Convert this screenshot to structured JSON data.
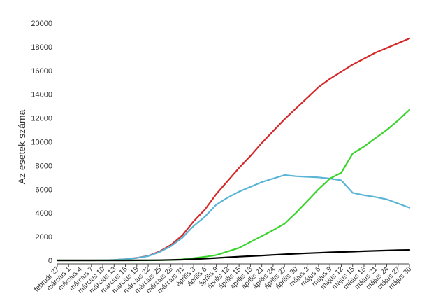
{
  "chart_data": {
    "type": "line",
    "title": "",
    "xlabel": "",
    "ylabel": "Az esetek száma",
    "ylim": [
      0,
      20000
    ],
    "yticks": [
      0,
      2000,
      4000,
      6000,
      8000,
      10000,
      12000,
      14000,
      16000,
      18000,
      20000
    ],
    "grid": false,
    "legend": "none",
    "x": [
      "február 27",
      "március 1",
      "március 4",
      "március 7",
      "március 10",
      "március 13",
      "március 16",
      "március 19",
      "március 22",
      "március 25",
      "március 28",
      "március 31",
      "április 3",
      "április 6",
      "április 9",
      "április 12",
      "április 15",
      "április 18",
      "április 21",
      "április 24",
      "április 27",
      "április 30",
      "május 3",
      "május 6",
      "május 9",
      "május 12",
      "május 15",
      "május 18",
      "május 21",
      "május 24",
      "május 27",
      "május 30"
    ],
    "series": [
      {
        "color": "#d62728",
        "values": [
          0,
          0,
          0,
          0,
          10,
          40,
          100,
          210,
          380,
          750,
          1300,
          2100,
          3300,
          4300,
          5600,
          6700,
          7800,
          8800,
          9900,
          10900,
          11900,
          12800,
          13700,
          14600,
          15300,
          15900,
          16500,
          17000,
          17500,
          17900,
          18300,
          18700
        ]
      },
      {
        "color": "#5ab4d6",
        "values": [
          0,
          0,
          0,
          0,
          10,
          40,
          95,
          200,
          360,
          700,
          1200,
          1900,
          2900,
          3700,
          4700,
          5300,
          5800,
          6200,
          6600,
          6900,
          7200,
          7100,
          7050,
          7000,
          6900,
          6750,
          5700,
          5500,
          5350,
          5150,
          4800,
          4450
        ]
      },
      {
        "color": "#39d42b",
        "values": [
          0,
          0,
          0,
          0,
          0,
          0,
          0,
          0,
          2,
          10,
          30,
          80,
          180,
          300,
          450,
          750,
          1050,
          1550,
          2050,
          2550,
          3100,
          4000,
          5000,
          6000,
          6900,
          7400,
          9000,
          9600,
          10300,
          11000,
          11800,
          12700
        ]
      },
      {
        "color": "#000000",
        "values": [
          0,
          0,
          0,
          0,
          0,
          0,
          0,
          5,
          10,
          20,
          40,
          60,
          100,
          150,
          200,
          260,
          310,
          360,
          410,
          460,
          510,
          560,
          600,
          640,
          680,
          710,
          740,
          770,
          800,
          830,
          860,
          880
        ]
      }
    ]
  }
}
